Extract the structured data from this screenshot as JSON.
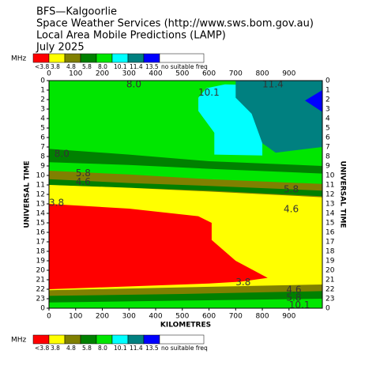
{
  "chart_data": {
    "type": "contour",
    "title_lines": [
      "BFS—Kalgoorlie",
      "Space Weather Services (http://www.sws.bom.gov.au)",
      "Local Area Mobile Predictions (LAMP)",
      "July 2025"
    ],
    "unit": "MHz",
    "xlabel": "KILOMETRES",
    "ylabel": "UNIVERSAL TIME",
    "xlim": [
      0,
      1025
    ],
    "ylim": [
      0,
      24
    ],
    "xticks": [
      0,
      100,
      200,
      300,
      400,
      500,
      600,
      700,
      800,
      900
    ],
    "yticks": [
      0,
      1,
      2,
      3,
      4,
      5,
      6,
      7,
      8,
      9,
      10,
      11,
      12,
      13,
      14,
      15,
      16,
      17,
      18,
      19,
      20,
      21,
      22,
      23,
      {
        "value": 24,
        "label": "0"
      }
    ],
    "legend": {
      "labels": [
        "<3.8",
        "3.8",
        "4.8",
        "5.8",
        "8.0",
        "10.1",
        "11.4",
        "13.5",
        "no suitable freq"
      ],
      "colors": [
        "#ff0000",
        "#ffff00",
        "#808000",
        "#008000",
        "#00e600",
        "#00ffff",
        "#008080",
        "#0000ff",
        "#ffffff"
      ]
    },
    "regions": [
      {
        "level": 4,
        "points": [
          [
            0,
            0
          ],
          [
            1025,
            0
          ],
          [
            1025,
            24
          ],
          [
            0,
            24
          ]
        ]
      },
      {
        "level": 3,
        "points": [
          [
            0,
            7.2
          ],
          [
            300,
            7.8
          ],
          [
            600,
            8.5
          ],
          [
            1025,
            9.0
          ],
          [
            1025,
            9.8
          ],
          [
            600,
            9.3
          ],
          [
            300,
            8.9
          ],
          [
            0,
            8.6
          ]
        ]
      },
      {
        "level": 2,
        "points": [
          [
            0,
            9.5
          ],
          [
            300,
            9.9
          ],
          [
            600,
            10.4
          ],
          [
            1025,
            10.9
          ],
          [
            1025,
            24
          ],
          [
            0,
            24
          ]
        ]
      },
      {
        "level": 3,
        "points": [
          [
            0,
            10.4
          ],
          [
            300,
            10.8
          ],
          [
            600,
            11.1
          ],
          [
            1025,
            11.6
          ],
          [
            1025,
            12.2
          ],
          [
            600,
            11.6
          ],
          [
            0,
            11.0
          ]
        ]
      },
      {
        "level": 1,
        "points": [
          [
            0,
            11.0
          ],
          [
            300,
            11.3
          ],
          [
            600,
            11.7
          ],
          [
            1025,
            12.3
          ],
          [
            1025,
            24
          ],
          [
            0,
            24
          ]
        ]
      },
      {
        "level": 0,
        "points": [
          [
            0,
            13
          ],
          [
            300,
            13.5
          ],
          [
            560,
            14.3
          ],
          [
            610,
            15
          ],
          [
            610,
            16.8
          ],
          [
            700,
            19
          ],
          [
            820,
            20.8
          ],
          [
            720,
            21.2
          ],
          [
            600,
            21.4
          ],
          [
            0,
            22
          ]
        ]
      },
      {
        "level": 2,
        "points": [
          [
            0,
            22.1
          ],
          [
            500,
            21.8
          ],
          [
            1025,
            21.5
          ],
          [
            1025,
            24
          ],
          [
            0,
            24
          ]
        ]
      },
      {
        "level": 3,
        "points": [
          [
            0,
            22.7
          ],
          [
            500,
            22.5
          ],
          [
            1025,
            22.2
          ],
          [
            1025,
            24
          ],
          [
            0,
            24
          ]
        ]
      },
      {
        "level": 4,
        "points": [
          [
            0,
            23.4
          ],
          [
            500,
            23.2
          ],
          [
            1025,
            23.0
          ],
          [
            1025,
            24
          ],
          [
            0,
            24
          ]
        ]
      },
      {
        "level": 5,
        "points": [
          [
            560,
            1.8
          ],
          [
            590,
            0.8
          ],
          [
            660,
            0.4
          ],
          [
            800,
            0.5
          ],
          [
            800,
            7.9
          ],
          [
            620,
            7.8
          ],
          [
            620,
            5.5
          ],
          [
            560,
            3.2
          ]
        ]
      },
      {
        "level": 6,
        "points": [
          [
            700,
            0
          ],
          [
            1025,
            0
          ],
          [
            1025,
            7.0
          ],
          [
            850,
            7.6
          ],
          [
            800,
            6.6
          ],
          [
            760,
            3.5
          ],
          [
            700,
            1.8
          ]
        ]
      },
      {
        "level": 7,
        "points": [
          [
            960,
            2.1
          ],
          [
            1025,
            1.0
          ],
          [
            1025,
            3.3
          ]
        ]
      }
    ],
    "contour_labels": [
      {
        "text": "8.0",
        "x": 290,
        "y": 0.4
      },
      {
        "text": "10.1",
        "x": 560,
        "y": 1.3
      },
      {
        "text": "11.4",
        "x": 800,
        "y": 0.4
      },
      {
        "text": "8.0",
        "x": 20,
        "y": 7.75
      },
      {
        "text": "5.8",
        "x": 100,
        "y": 9.8
      },
      {
        "text": "4.6",
        "x": 100,
        "y": 10.7
      },
      {
        "text": "3.8",
        "x": 0,
        "y": 12.9
      },
      {
        "text": "5.8",
        "x": 880,
        "y": 11.5
      },
      {
        "text": "4.6",
        "x": 880,
        "y": 13.6
      },
      {
        "text": "3.8",
        "x": 700,
        "y": 21.3
      },
      {
        "text": "4.6",
        "x": 890,
        "y": 22.1
      },
      {
        "text": "5.8",
        "x": 890,
        "y": 22.9
      },
      {
        "text": "10.1",
        "x": 900,
        "y": 23.7
      }
    ]
  }
}
